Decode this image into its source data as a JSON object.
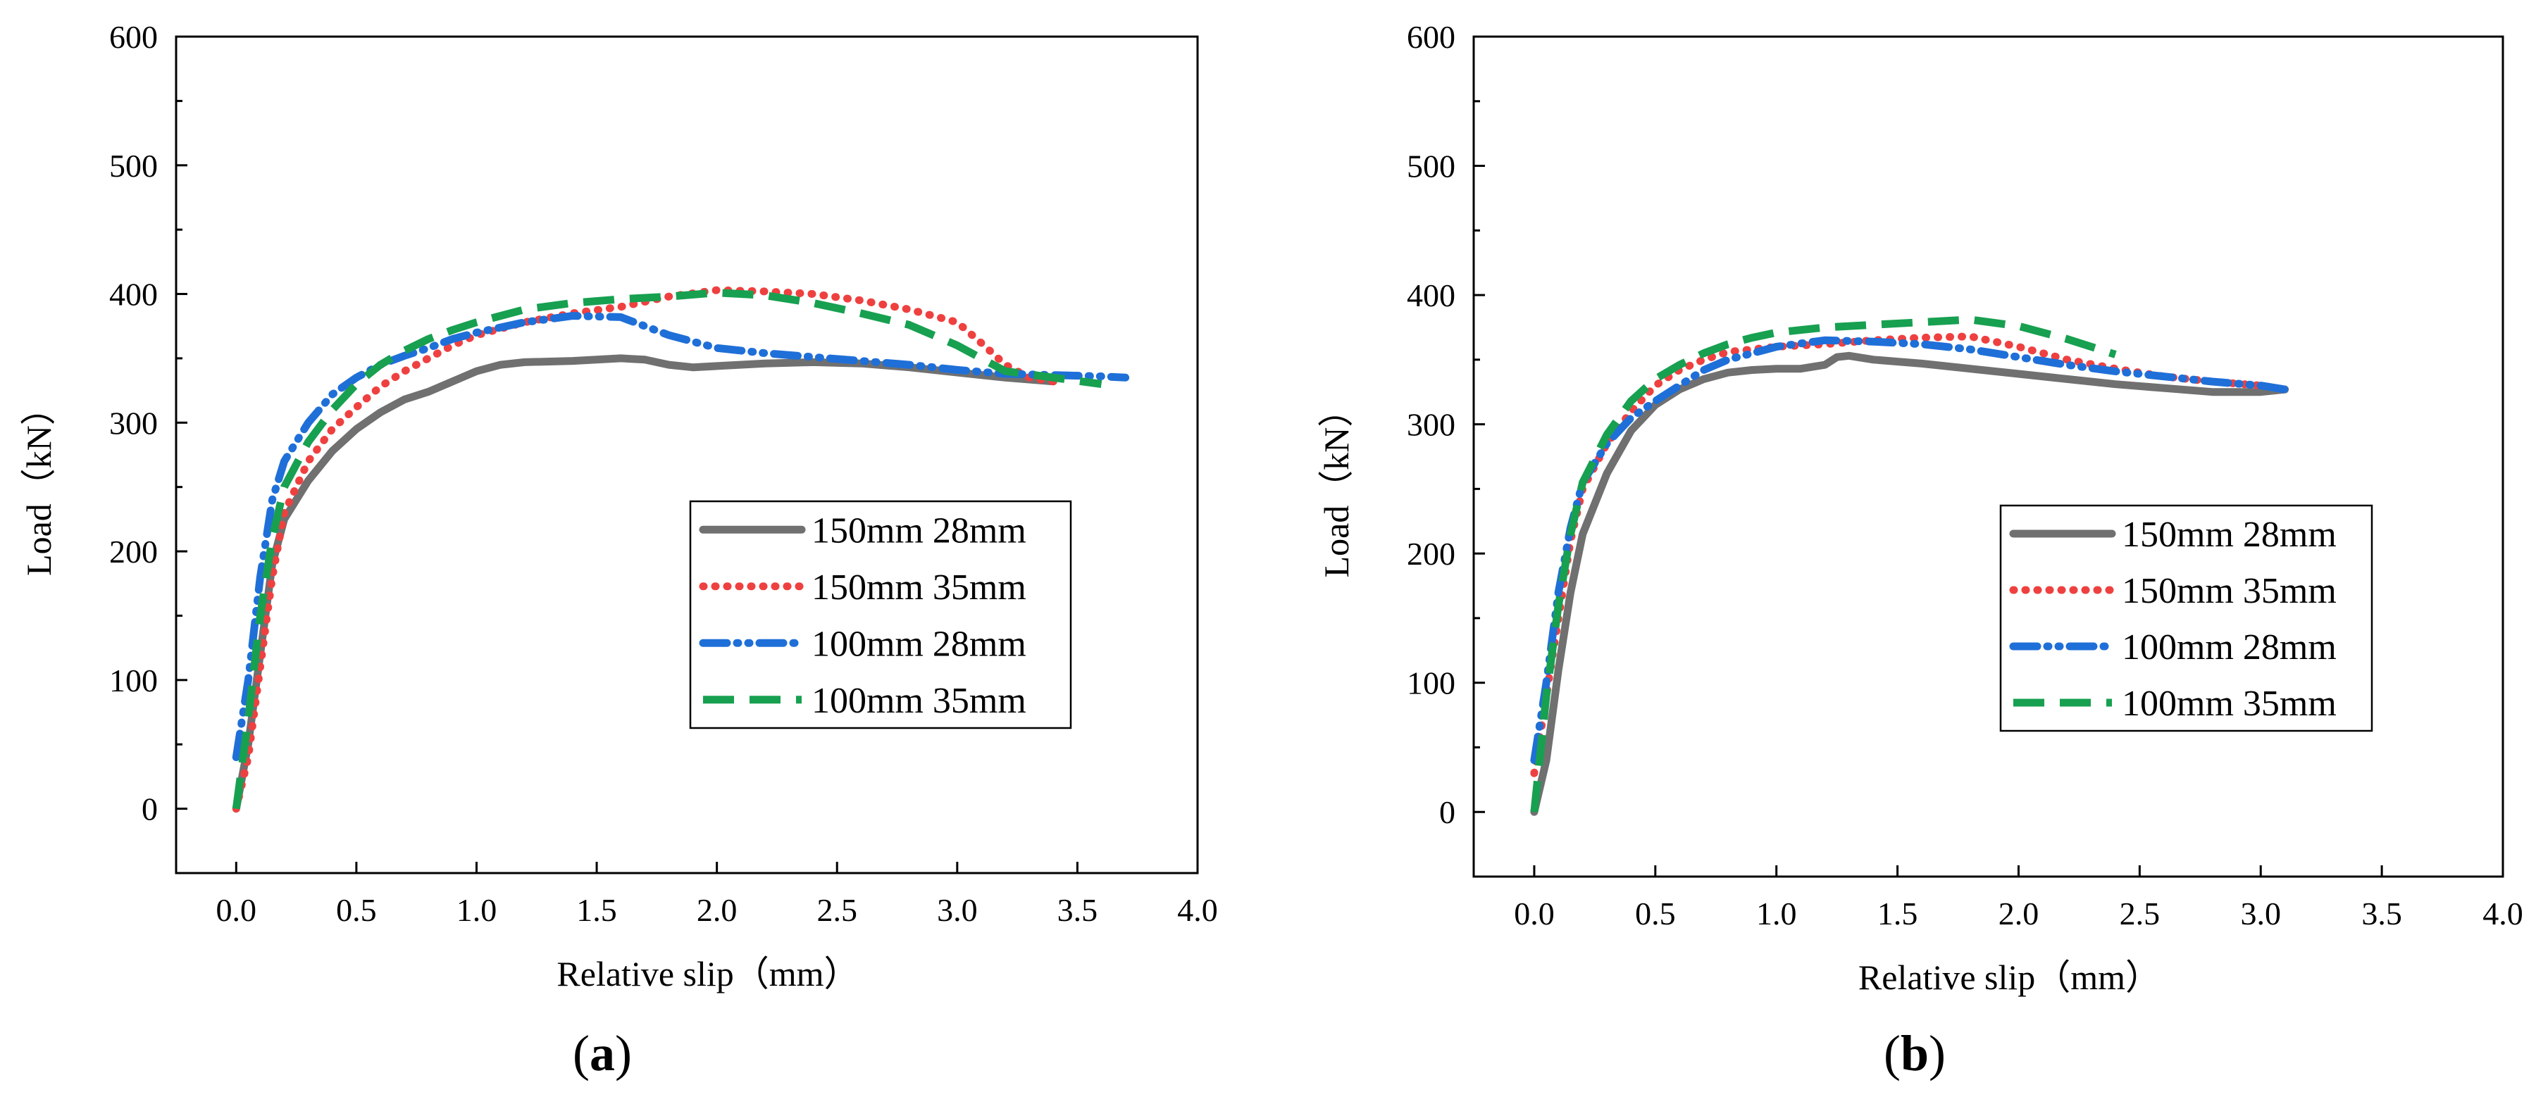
{
  "chart_data": [
    {
      "type": "line",
      "panel": "a",
      "label_open": "(",
      "label_letter": "a",
      "label_close": ")",
      "xlabel": "Relative slip（mm）",
      "ylabel": "Load（kN）",
      "xlim": [
        -0.25,
        4.0
      ],
      "ylim": [
        -50,
        600
      ],
      "xticks": [
        0.0,
        0.5,
        1.0,
        1.5,
        2.0,
        2.5,
        3.0,
        3.5,
        4.0
      ],
      "xtick_labels": [
        "0.0",
        "0.5",
        "1.0",
        "1.5",
        "2.0",
        "2.5",
        "3.0",
        "3.5",
        "4.0"
      ],
      "yticks": [
        0,
        100,
        200,
        300,
        400,
        500,
        600
      ],
      "ytick_labels": [
        "0",
        "100",
        "200",
        "300",
        "400",
        "500",
        "600"
      ],
      "legend_position": "lower-right",
      "series": [
        {
          "name": "150mm 28mm",
          "color": "#707070",
          "style": "solid",
          "points": [
            [
              0,
              0
            ],
            [
              0.05,
              50
            ],
            [
              0.1,
              120
            ],
            [
              0.15,
              190
            ],
            [
              0.2,
              225
            ],
            [
              0.3,
              255
            ],
            [
              0.4,
              278
            ],
            [
              0.5,
              295
            ],
            [
              0.6,
              308
            ],
            [
              0.7,
              318
            ],
            [
              0.8,
              324
            ],
            [
              0.9,
              332
            ],
            [
              1.0,
              340
            ],
            [
              1.1,
              345
            ],
            [
              1.2,
              347
            ],
            [
              1.4,
              348
            ],
            [
              1.6,
              350
            ],
            [
              1.7,
              349
            ],
            [
              1.8,
              345
            ],
            [
              1.9,
              343
            ],
            [
              2.0,
              344
            ],
            [
              2.2,
              346
            ],
            [
              2.4,
              347
            ],
            [
              2.6,
              346
            ],
            [
              2.8,
              343
            ],
            [
              3.0,
              339
            ],
            [
              3.2,
              335
            ],
            [
              3.4,
              332
            ]
          ]
        },
        {
          "name": "150mm 35mm",
          "color": "#ef4040",
          "style": "dotted",
          "points": [
            [
              0,
              0
            ],
            [
              0.05,
              40
            ],
            [
              0.1,
              110
            ],
            [
              0.15,
              180
            ],
            [
              0.2,
              230
            ],
            [
              0.3,
              270
            ],
            [
              0.4,
              295
            ],
            [
              0.5,
              312
            ],
            [
              0.6,
              328
            ],
            [
              0.7,
              340
            ],
            [
              0.8,
              350
            ],
            [
              0.9,
              360
            ],
            [
              1.0,
              368
            ],
            [
              1.2,
              378
            ],
            [
              1.4,
              385
            ],
            [
              1.6,
              390
            ],
            [
              1.8,
              398
            ],
            [
              2.0,
              403
            ],
            [
              2.2,
              402
            ],
            [
              2.4,
              400
            ],
            [
              2.6,
              395
            ],
            [
              2.8,
              388
            ],
            [
              3.0,
              378
            ],
            [
              3.1,
              362
            ],
            [
              3.2,
              345
            ],
            [
              3.3,
              335
            ],
            [
              3.4,
              332
            ]
          ]
        },
        {
          "name": "100mm 28mm",
          "color": "#1f6fd8",
          "style": "dashdot",
          "points": [
            [
              0,
              40
            ],
            [
              0.05,
              100
            ],
            [
              0.1,
              180
            ],
            [
              0.15,
              240
            ],
            [
              0.2,
              270
            ],
            [
              0.3,
              300
            ],
            [
              0.4,
              322
            ],
            [
              0.5,
              335
            ],
            [
              0.6,
              345
            ],
            [
              0.7,
              352
            ],
            [
              0.8,
              358
            ],
            [
              0.9,
              365
            ],
            [
              1.0,
              370
            ],
            [
              1.2,
              378
            ],
            [
              1.4,
              383
            ],
            [
              1.6,
              382
            ],
            [
              1.8,
              368
            ],
            [
              2.0,
              358
            ],
            [
              2.2,
              354
            ],
            [
              2.4,
              351
            ],
            [
              2.6,
              348
            ],
            [
              2.8,
              345
            ],
            [
              3.0,
              341
            ],
            [
              3.2,
              338
            ],
            [
              3.4,
              337
            ],
            [
              3.6,
              336
            ],
            [
              3.7,
              335
            ]
          ]
        },
        {
          "name": "100mm 35mm",
          "color": "#17a050",
          "style": "dashed",
          "points": [
            [
              0,
              0
            ],
            [
              0.05,
              70
            ],
            [
              0.1,
              150
            ],
            [
              0.15,
              210
            ],
            [
              0.2,
              250
            ],
            [
              0.3,
              285
            ],
            [
              0.4,
              310
            ],
            [
              0.5,
              330
            ],
            [
              0.6,
              345
            ],
            [
              0.7,
              356
            ],
            [
              0.8,
              365
            ],
            [
              0.9,
              372
            ],
            [
              1.0,
              378
            ],
            [
              1.2,
              388
            ],
            [
              1.4,
              393
            ],
            [
              1.6,
              396
            ],
            [
              1.8,
              398
            ],
            [
              2.0,
              401
            ],
            [
              2.2,
              399
            ],
            [
              2.4,
              393
            ],
            [
              2.6,
              385
            ],
            [
              2.8,
              376
            ],
            [
              3.0,
              360
            ],
            [
              3.1,
              350
            ],
            [
              3.2,
              340
            ],
            [
              3.4,
              335
            ],
            [
              3.6,
              330
            ]
          ]
        }
      ]
    },
    {
      "type": "line",
      "panel": "b",
      "label_open": "(",
      "label_letter": "b",
      "label_close": ")",
      "xlabel": "Relative slip（mm）",
      "ylabel": "Load（kN）",
      "xlim": [
        -0.25,
        4.0
      ],
      "ylim": [
        -50,
        600
      ],
      "xticks": [
        0.0,
        0.5,
        1.0,
        1.5,
        2.0,
        2.5,
        3.0,
        3.5,
        4.0
      ],
      "xtick_labels": [
        "0.0",
        "0.5",
        "1.0",
        "1.5",
        "2.0",
        "2.5",
        "3.0",
        "3.5",
        "4.0"
      ],
      "yticks": [
        0,
        100,
        200,
        300,
        400,
        500,
        600
      ],
      "ytick_labels": [
        "0",
        "100",
        "200",
        "300",
        "400",
        "500",
        "600"
      ],
      "legend_position": "lower-right",
      "series": [
        {
          "name": "150mm 28mm",
          "color": "#707070",
          "style": "solid",
          "points": [
            [
              0,
              0
            ],
            [
              0.05,
              40
            ],
            [
              0.1,
              110
            ],
            [
              0.15,
              170
            ],
            [
              0.2,
              215
            ],
            [
              0.3,
              262
            ],
            [
              0.4,
              295
            ],
            [
              0.5,
              315
            ],
            [
              0.6,
              327
            ],
            [
              0.7,
              335
            ],
            [
              0.8,
              340
            ],
            [
              0.9,
              342
            ],
            [
              1.0,
              343
            ],
            [
              1.1,
              343
            ],
            [
              1.2,
              346
            ],
            [
              1.25,
              352
            ],
            [
              1.3,
              353
            ],
            [
              1.4,
              350
            ],
            [
              1.6,
              347
            ],
            [
              1.8,
              343
            ],
            [
              2.0,
              339
            ],
            [
              2.2,
              335
            ],
            [
              2.4,
              331
            ],
            [
              2.6,
              328
            ],
            [
              2.8,
              325
            ],
            [
              3.0,
              325
            ],
            [
              3.1,
              327
            ]
          ]
        },
        {
          "name": "150mm 35mm",
          "color": "#ef4040",
          "style": "dotted",
          "points": [
            [
              0,
              30
            ],
            [
              0.05,
              90
            ],
            [
              0.1,
              150
            ],
            [
              0.15,
              210
            ],
            [
              0.2,
              250
            ],
            [
              0.3,
              285
            ],
            [
              0.4,
              310
            ],
            [
              0.5,
              330
            ],
            [
              0.6,
              342
            ],
            [
              0.7,
              350
            ],
            [
              0.8,
              356
            ],
            [
              0.9,
              358
            ],
            [
              1.0,
              360
            ],
            [
              1.2,
              362
            ],
            [
              1.4,
              365
            ],
            [
              1.6,
              367
            ],
            [
              1.8,
              368
            ],
            [
              2.0,
              360
            ],
            [
              2.2,
              350
            ],
            [
              2.4,
              343
            ],
            [
              2.6,
              337
            ],
            [
              2.8,
              333
            ],
            [
              3.0,
              330
            ],
            [
              3.1,
              327
            ]
          ]
        },
        {
          "name": "100mm 28mm",
          "color": "#1f6fd8",
          "style": "dashdot",
          "points": [
            [
              0,
              40
            ],
            [
              0.05,
              100
            ],
            [
              0.1,
              170
            ],
            [
              0.15,
              220
            ],
            [
              0.2,
              255
            ],
            [
              0.3,
              285
            ],
            [
              0.4,
              305
            ],
            [
              0.5,
              318
            ],
            [
              0.6,
              330
            ],
            [
              0.7,
              342
            ],
            [
              0.8,
              350
            ],
            [
              0.9,
              355
            ],
            [
              1.0,
              360
            ],
            [
              1.2,
              365
            ],
            [
              1.4,
              364
            ],
            [
              1.6,
              362
            ],
            [
              1.8,
              358
            ],
            [
              2.0,
              352
            ],
            [
              2.2,
              346
            ],
            [
              2.4,
              341
            ],
            [
              2.6,
              337
            ],
            [
              2.8,
              333
            ],
            [
              3.0,
              330
            ],
            [
              3.1,
              327
            ]
          ]
        },
        {
          "name": "100mm 35mm",
          "color": "#17a050",
          "style": "dashed",
          "points": [
            [
              0,
              0
            ],
            [
              0.05,
              90
            ],
            [
              0.1,
              160
            ],
            [
              0.15,
              215
            ],
            [
              0.2,
              255
            ],
            [
              0.3,
              292
            ],
            [
              0.4,
              318
            ],
            [
              0.5,
              335
            ],
            [
              0.6,
              346
            ],
            [
              0.7,
              355
            ],
            [
              0.8,
              362
            ],
            [
              0.9,
              367
            ],
            [
              1.0,
              371
            ],
            [
              1.2,
              375
            ],
            [
              1.4,
              377
            ],
            [
              1.6,
              379
            ],
            [
              1.8,
              381
            ],
            [
              2.0,
              376
            ],
            [
              2.2,
              366
            ],
            [
              2.4,
              354
            ]
          ]
        }
      ]
    }
  ]
}
